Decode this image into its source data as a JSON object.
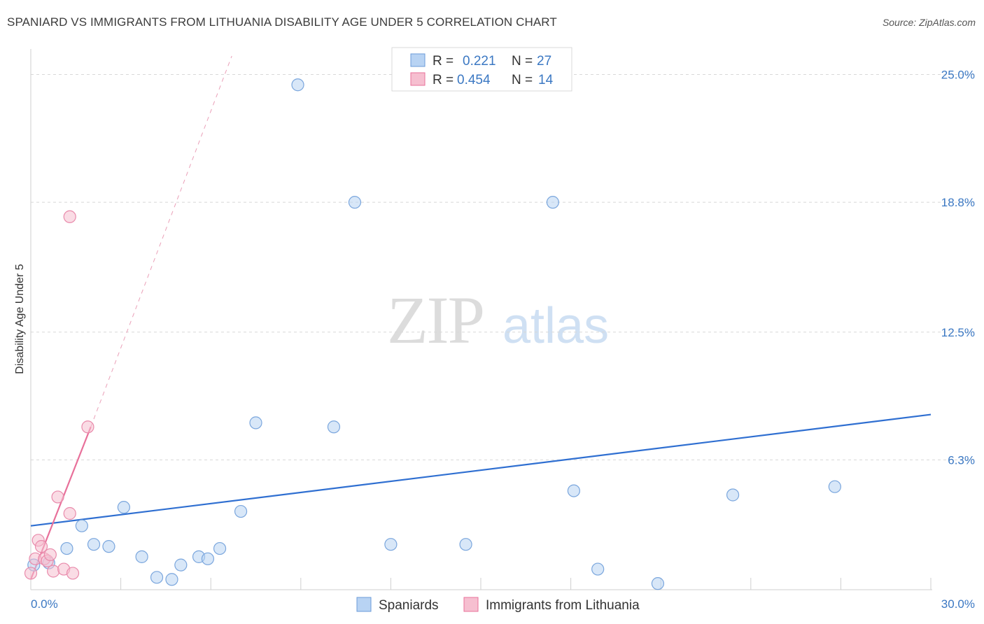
{
  "title": "SPANIARD VS IMMIGRANTS FROM LITHUANIA DISABILITY AGE UNDER 5 CORRELATION CHART",
  "source": "Source: ZipAtlas.com",
  "watermark": {
    "zip": "ZIP",
    "atlas": "atlas"
  },
  "colors": {
    "blue": "#3b78c3",
    "blue_fill": "#b8d3f3",
    "pink": "#e8709a",
    "pink_fill": "#f6bfd0"
  },
  "legend_top": [
    {
      "r_label": "R =",
      "r_value": "0.221",
      "n_label": "N =",
      "n_value": "27"
    },
    {
      "r_label": "R =",
      "r_value": "0.454",
      "n_label": "N =",
      "n_value": "14"
    }
  ],
  "chart_data": {
    "type": "scatter",
    "title": "SPANIARD VS IMMIGRANTS FROM LITHUANIA DISABILITY AGE UNDER 5 CORRELATION CHART",
    "xlabel": "",
    "ylabel": "Disability Age Under 5",
    "xlim": [
      0,
      30
    ],
    "ylim": [
      0,
      25.9
    ],
    "x_tick_labels": [
      "0.0%",
      "30.0%"
    ],
    "y_ticks": [
      6.3,
      12.5,
      18.8,
      25.0
    ],
    "y_tick_labels": [
      "6.3%",
      "12.5%",
      "18.8%",
      "25.0%"
    ],
    "series": [
      {
        "name": "Spaniards",
        "color": "#3b78c3",
        "points": [
          [
            0.1,
            1.2
          ],
          [
            0.6,
            1.3
          ],
          [
            1.2,
            2.0
          ],
          [
            1.7,
            3.1
          ],
          [
            2.1,
            2.2
          ],
          [
            2.6,
            2.1
          ],
          [
            3.1,
            4.0
          ],
          [
            3.7,
            1.6
          ],
          [
            4.2,
            0.6
          ],
          [
            4.7,
            0.5
          ],
          [
            5.0,
            1.2
          ],
          [
            5.6,
            1.6
          ],
          [
            5.9,
            1.5
          ],
          [
            6.3,
            2.0
          ],
          [
            7.0,
            3.8
          ],
          [
            7.5,
            8.1
          ],
          [
            8.9,
            24.5
          ],
          [
            10.1,
            7.9
          ],
          [
            10.8,
            18.8
          ],
          [
            12.0,
            2.2
          ],
          [
            14.5,
            2.2
          ],
          [
            17.4,
            18.8
          ],
          [
            18.1,
            4.8
          ],
          [
            18.9,
            1.0
          ],
          [
            20.9,
            0.3
          ],
          [
            23.4,
            4.6
          ],
          [
            26.8,
            5.0
          ]
        ],
        "trend": {
          "x": [
            0,
            30
          ],
          "y": [
            3.1,
            8.5
          ]
        }
      },
      {
        "name": "Immigrants from Lithuania",
        "color": "#e8709a",
        "points": [
          [
            0.0,
            0.8
          ],
          [
            0.15,
            1.5
          ],
          [
            0.25,
            2.4
          ],
          [
            0.35,
            2.1
          ],
          [
            0.45,
            1.5
          ],
          [
            0.55,
            1.4
          ],
          [
            0.65,
            1.7
          ],
          [
            0.75,
            0.9
          ],
          [
            0.9,
            4.5
          ],
          [
            1.1,
            1.0
          ],
          [
            1.3,
            3.7
          ],
          [
            1.4,
            0.8
          ],
          [
            1.3,
            18.1
          ],
          [
            1.9,
            7.9
          ]
        ],
        "trend": {
          "x": [
            0,
            2.0
          ],
          "y": [
            0.5,
            7.9
          ]
        },
        "trend_extension": {
          "x": [
            2.0,
            6.7
          ],
          "y": [
            7.9,
            25.9
          ]
        }
      }
    ]
  },
  "bottom_legend": [
    {
      "label": "Spaniards"
    },
    {
      "label": "Immigrants from Lithuania"
    }
  ]
}
